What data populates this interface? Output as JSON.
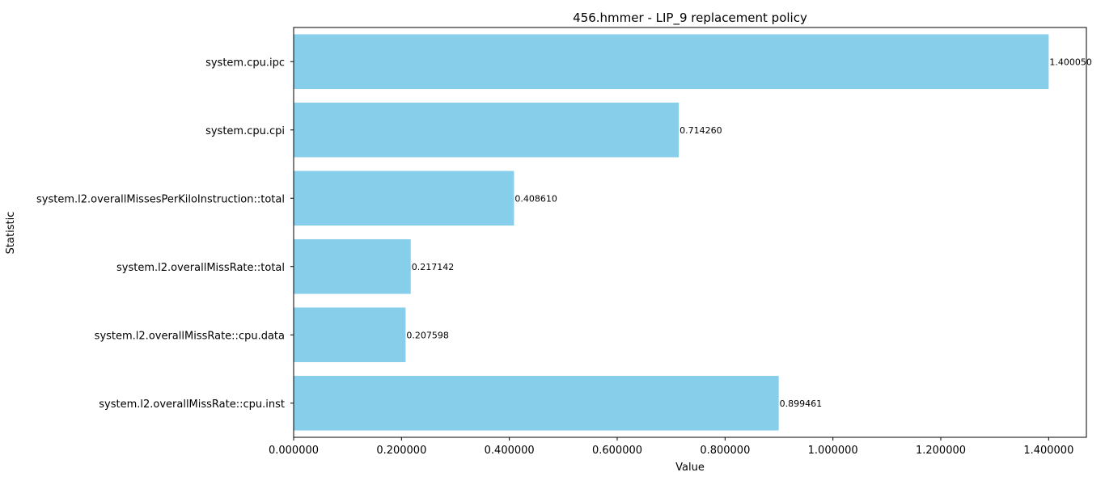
{
  "chart_data": {
    "type": "bar",
    "orientation": "horizontal",
    "title": "456.hmmer - LIP_9 replacement policy",
    "xlabel": "Value",
    "ylabel": "Statistic",
    "xlim": [
      0,
      1.47
    ],
    "xticks": [
      0,
      0.2,
      0.4,
      0.6,
      0.8,
      1.0,
      1.2,
      1.4
    ],
    "xtick_labels": [
      "0.000000",
      "0.200000",
      "0.400000",
      "0.600000",
      "0.800000",
      "1.000000",
      "1.200000",
      "1.400000"
    ],
    "categories": [
      "system.cpu.ipc",
      "system.cpu.cpi",
      "system.l2.overallMissesPerKiloInstruction::total",
      "system.l2.overallMissRate::total",
      "system.l2.overallMissRate::cpu.data",
      "system.l2.overallMissRate::cpu.inst"
    ],
    "values": [
      1.40005,
      0.71426,
      0.40861,
      0.217142,
      0.207598,
      0.899461
    ],
    "value_labels": [
      "1.400050",
      "0.714260",
      "0.408610",
      "0.217142",
      "0.207598",
      "0.899461"
    ],
    "bar_color": "#87ceeb",
    "grid": false,
    "legend": "none"
  }
}
